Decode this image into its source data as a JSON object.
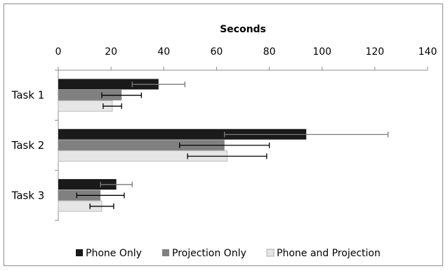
{
  "chart_data": {
    "type": "bar",
    "orientation": "horizontal",
    "title": "Seconds",
    "x_axis_position": "top",
    "xlim": [
      0,
      140
    ],
    "x_ticks": [
      "0",
      "20",
      "40",
      "60",
      "80",
      "100",
      "120",
      "140"
    ],
    "categories": [
      "Task 1",
      "Task 2",
      "Task 3"
    ],
    "series": [
      {
        "name": "Phone Only",
        "color": "#1a1a1a",
        "values": [
          38,
          94,
          22
        ],
        "errors": [
          10,
          31,
          6
        ],
        "error_color": "#7a7a7a"
      },
      {
        "name": "Projection Only",
        "color": "#808080",
        "values": [
          24,
          63,
          16
        ],
        "errors": [
          7.5,
          17,
          9
        ],
        "error_color": "#000000"
      },
      {
        "name": "Phone and Projection",
        "color": "#e6e6e6",
        "values": [
          20.5,
          64,
          16.5
        ],
        "errors": [
          3.5,
          15,
          4.5
        ],
        "error_color": "#000000"
      }
    ],
    "grid": false,
    "legend_position": "bottom"
  }
}
